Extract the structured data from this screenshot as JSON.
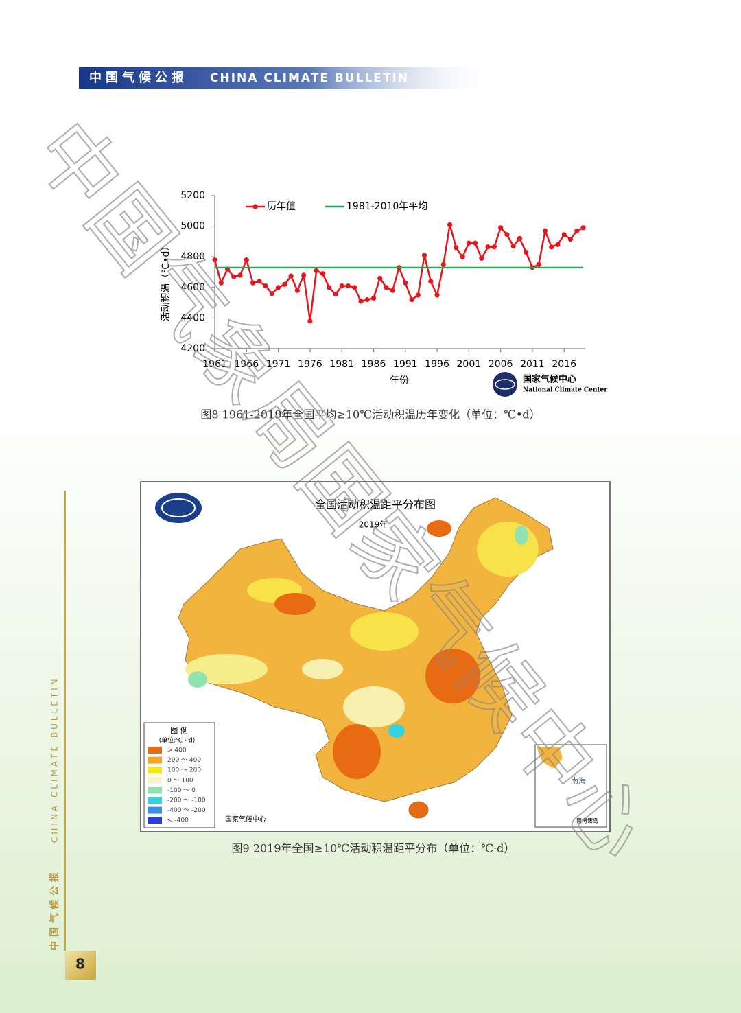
{
  "header": {
    "title_cn": "中国气候公报",
    "title_en": "CHINA CLIMATE BULLETIN"
  },
  "watermark": "中国气象局国家气候中心",
  "chart_data": {
    "type": "line",
    "y_label": "活动积温（℃•d）",
    "x_label": "年份",
    "x": [
      1961,
      1962,
      1963,
      1964,
      1965,
      1966,
      1967,
      1968,
      1969,
      1970,
      1971,
      1972,
      1973,
      1974,
      1975,
      1976,
      1977,
      1978,
      1979,
      1980,
      1981,
      1982,
      1983,
      1984,
      1985,
      1986,
      1987,
      1988,
      1989,
      1990,
      1991,
      1992,
      1993,
      1994,
      1995,
      1996,
      1997,
      1998,
      1999,
      2000,
      2001,
      2002,
      2003,
      2004,
      2005,
      2006,
      2007,
      2008,
      2009,
      2010,
      2011,
      2012,
      2013,
      2014,
      2015,
      2016,
      2017,
      2018,
      2019
    ],
    "series": [
      {
        "name": "历年值",
        "color": "#e8151b",
        "marker": true,
        "values": [
          4780,
          4630,
          4720,
          4670,
          4680,
          4780,
          4630,
          4640,
          4610,
          4560,
          4600,
          4620,
          4675,
          4580,
          4680,
          4380,
          4710,
          4690,
          4600,
          4555,
          4610,
          4610,
          4600,
          4510,
          4520,
          4530,
          4660,
          4600,
          4580,
          4730,
          4630,
          4520,
          4550,
          4810,
          4640,
          4550,
          4750,
          5010,
          4860,
          4800,
          4890,
          4890,
          4790,
          4865,
          4865,
          4990,
          4945,
          4870,
          4920,
          4830,
          4730,
          4750,
          4970,
          4865,
          4880,
          4945,
          4915,
          4970,
          4990
        ]
      },
      {
        "name": "1981-2010年平均",
        "color": "#1aa64a",
        "marker": false,
        "values": [
          4730,
          4730,
          4730,
          4730,
          4730,
          4730,
          4730,
          4730,
          4730,
          4730,
          4730,
          4730,
          4730,
          4730,
          4730,
          4730,
          4730,
          4730,
          4730,
          4730,
          4730,
          4730,
          4730,
          4730,
          4730,
          4730,
          4730,
          4730,
          4730,
          4730,
          4730,
          4730,
          4730,
          4730,
          4730,
          4730,
          4730,
          4730,
          4730,
          4730,
          4730,
          4730,
          4730,
          4730,
          4730,
          4730,
          4730,
          4730,
          4730,
          4730,
          4730,
          4730,
          4730,
          4730,
          4730,
          4730,
          4730,
          4730,
          4730
        ]
      }
    ],
    "xlim": [
      1961,
      2019
    ],
    "xticks": [
      1961,
      1966,
      1971,
      1976,
      1981,
      1986,
      1991,
      1996,
      2001,
      2006,
      2011,
      2016
    ],
    "ylim": [
      4200,
      5200
    ],
    "yticks": [
      4200,
      4400,
      4600,
      4800,
      5000,
      5200
    ],
    "legend": "top",
    "logo": {
      "name_cn": "国家气候中心",
      "name_en": "National Climate Center"
    }
  },
  "caption8": "图8 1961-2019年全国平均≥10℃活动积温历年变化（单位：℃•d）",
  "map": {
    "title": "全国活动积温距平分布图",
    "subtitle": "2019年",
    "legend_title": "图 例",
    "legend_unit": "(单位:℃ · d)",
    "legend": [
      {
        "label": "> 400",
        "color": "#e86a12"
      },
      {
        "label": "200 ～ 400",
        "color": "#f5a623"
      },
      {
        "label": "100 ～ 200",
        "color": "#f5e81a"
      },
      {
        "label": "0 ～ 100",
        "color": "#f7f3c6"
      },
      {
        "label": "-100 ～ 0",
        "color": "#8fe3b0"
      },
      {
        "label": "-200 ～ -100",
        "color": "#34d3e0"
      },
      {
        "label": "-400 ～ -200",
        "color": "#3f8fe0"
      },
      {
        "label": "< -400",
        "color": "#2a3fd8"
      }
    ],
    "source": "国家气候中心",
    "inset_label": "南海",
    "inset_note": "南海诸岛"
  },
  "caption9": "图9 2019年全国≥10℃活动积温距平分布（单位：℃·d）",
  "sidebar": {
    "title_cn": "中国气候公报",
    "title_en": "CHINA CLIMATE BULLETIN"
  },
  "page_number": "8"
}
